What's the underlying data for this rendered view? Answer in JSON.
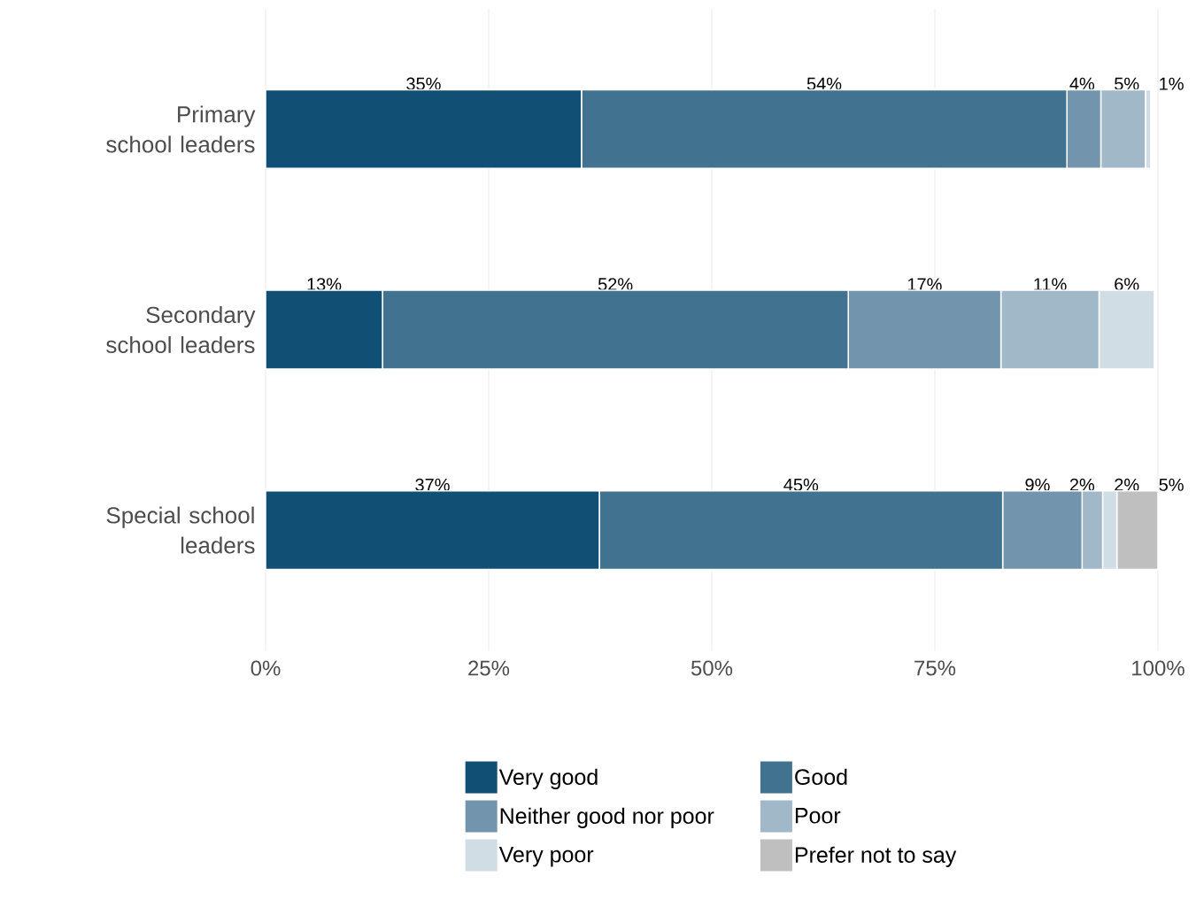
{
  "chart_data": {
    "type": "bar",
    "orientation": "horizontal",
    "stacked": true,
    "categories": [
      "Primary school leaders",
      "Secondary school leaders",
      "Special school leaders"
    ],
    "series": [
      {
        "name": "Very good",
        "color": "#114f74",
        "values": [
          35.4,
          13.1,
          37.4
        ],
        "value_labels": [
          "35%",
          "13%",
          "37%"
        ]
      },
      {
        "name": "Good",
        "color": "#417391",
        "values": [
          54.4,
          52.2,
          45.2
        ],
        "value_labels": [
          "54%",
          "52%",
          "45%"
        ]
      },
      {
        "name": "Neither good nor poor",
        "color": "#7295ad",
        "values": [
          3.8,
          17.1,
          8.9
        ],
        "value_labels": [
          "4%",
          "17%",
          "9%"
        ]
      },
      {
        "name": "Poor",
        "color": "#a0b8c8",
        "values": [
          5.0,
          11.0,
          2.3
        ],
        "value_labels": [
          "5%",
          "11%",
          "2%"
        ]
      },
      {
        "name": "Very poor",
        "color": "#d0dde5",
        "values": [
          0.6,
          6.2,
          1.6
        ],
        "value_labels": [
          "1%",
          "6%",
          "2%"
        ]
      },
      {
        "name": "Prefer not to say",
        "color": "#bfbfbf",
        "values": [
          null,
          null,
          4.6
        ],
        "value_labels": [
          null,
          null,
          "5%"
        ]
      }
    ],
    "xlim": [
      0,
      100
    ],
    "xticks": [
      {
        "value": 0,
        "label": "0%"
      },
      {
        "value": 25,
        "label": "25%"
      },
      {
        "value": 50,
        "label": "50%"
      },
      {
        "value": 75,
        "label": "75%"
      },
      {
        "value": 100,
        "label": "100%"
      }
    ],
    "grid": "x",
    "legend": "bottom"
  }
}
